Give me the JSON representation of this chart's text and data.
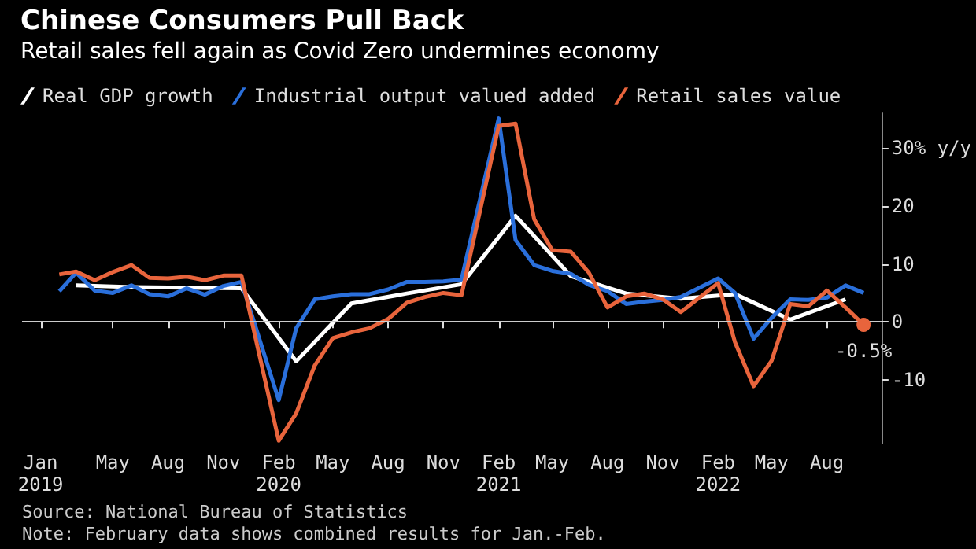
{
  "chart_data": {
    "type": "line",
    "title": "Chinese Consumers Pull Back",
    "subtitle": "Retail sales fell again as Covid Zero undermines economy",
    "series": [
      {
        "name": "Real GDP growth",
        "color": "#ffffff",
        "x": [
          "2019-03",
          "2019-06",
          "2019-09",
          "2019-12",
          "2020-03",
          "2020-06",
          "2020-09",
          "2020-12",
          "2021-03",
          "2021-06",
          "2021-09",
          "2021-12",
          "2022-03",
          "2022-06",
          "2022-09"
        ],
        "values": [
          6.3,
          6.0,
          5.9,
          5.8,
          -6.8,
          3.2,
          4.9,
          6.5,
          18.3,
          7.9,
          4.9,
          4.0,
          4.8,
          0.4,
          3.9
        ]
      },
      {
        "name": "Industrial output valued added",
        "color": "#2a6fdb",
        "x": [
          "2019-02",
          "2019-03",
          "2019-04",
          "2019-05",
          "2019-06",
          "2019-07",
          "2019-08",
          "2019-09",
          "2019-10",
          "2019-11",
          "2019-12",
          "2020-02",
          "2020-03",
          "2020-04",
          "2020-05",
          "2020-06",
          "2020-07",
          "2020-08",
          "2020-09",
          "2020-10",
          "2020-11",
          "2020-12",
          "2021-02",
          "2021-03",
          "2021-04",
          "2021-05",
          "2021-06",
          "2021-07",
          "2021-08",
          "2021-09",
          "2021-10",
          "2021-11",
          "2021-12",
          "2022-02",
          "2022-03",
          "2022-04",
          "2022-05",
          "2022-06",
          "2022-07",
          "2022-08",
          "2022-09",
          "2022-10"
        ],
        "values": [
          5.3,
          8.5,
          5.4,
          5.0,
          6.3,
          4.8,
          4.4,
          5.8,
          4.7,
          6.2,
          6.9,
          -13.5,
          -1.1,
          3.9,
          4.4,
          4.8,
          4.8,
          5.6,
          6.9,
          6.9,
          7.0,
          7.3,
          35.1,
          14.1,
          9.8,
          8.8,
          8.3,
          6.4,
          5.3,
          3.1,
          3.5,
          3.8,
          4.3,
          7.5,
          5.0,
          -2.9,
          0.7,
          3.9,
          3.8,
          4.2,
          6.3,
          5.0
        ]
      },
      {
        "name": "Retail sales value",
        "color": "#e8643c",
        "x": [
          "2019-02",
          "2019-03",
          "2019-04",
          "2019-05",
          "2019-06",
          "2019-07",
          "2019-08",
          "2019-09",
          "2019-10",
          "2019-11",
          "2019-12",
          "2020-02",
          "2020-03",
          "2020-04",
          "2020-05",
          "2020-06",
          "2020-07",
          "2020-08",
          "2020-09",
          "2020-10",
          "2020-11",
          "2020-12",
          "2021-02",
          "2021-03",
          "2021-04",
          "2021-05",
          "2021-06",
          "2021-07",
          "2021-08",
          "2021-09",
          "2021-10",
          "2021-11",
          "2021-12",
          "2022-02",
          "2022-03",
          "2022-04",
          "2022-05",
          "2022-06",
          "2022-07",
          "2022-08",
          "2022-09",
          "2022-10"
        ],
        "values": [
          8.2,
          8.7,
          7.2,
          8.6,
          9.8,
          7.6,
          7.5,
          7.8,
          7.2,
          8.0,
          8.0,
          -20.5,
          -15.8,
          -7.5,
          -2.8,
          -1.8,
          -1.1,
          0.5,
          3.3,
          4.3,
          5.0,
          4.6,
          33.8,
          34.2,
          17.7,
          12.4,
          12.1,
          8.5,
          2.5,
          4.4,
          4.9,
          3.9,
          1.7,
          6.7,
          -3.5,
          -11.1,
          -6.7,
          3.1,
          2.7,
          5.4,
          2.5,
          -0.5
        ]
      }
    ],
    "xlim": [
      "2018-12",
      "2022-11"
    ],
    "xticks": [
      {
        "value": "2019-01",
        "label": "Jan\n2019"
      },
      {
        "value": "2019-05",
        "label": "May"
      },
      {
        "value": "2019-08",
        "label": "Aug"
      },
      {
        "value": "2019-11",
        "label": "Nov"
      },
      {
        "value": "2020-02",
        "label": "Feb\n2020"
      },
      {
        "value": "2020-05",
        "label": "May"
      },
      {
        "value": "2020-08",
        "label": "Aug"
      },
      {
        "value": "2020-11",
        "label": "Nov"
      },
      {
        "value": "2021-02",
        "label": "Feb\n2021"
      },
      {
        "value": "2021-05",
        "label": "May"
      },
      {
        "value": "2021-08",
        "label": "Aug"
      },
      {
        "value": "2021-11",
        "label": "Nov"
      },
      {
        "value": "2022-02",
        "label": "Feb\n2022"
      },
      {
        "value": "2022-05",
        "label": "May"
      },
      {
        "value": "2022-08",
        "label": "Aug"
      }
    ],
    "ylim": [
      -21,
      36
    ],
    "yticks": [
      -10,
      0,
      10,
      20,
      {
        "value": 30,
        "label": "30% y/y"
      }
    ],
    "ref_lines": [
      {
        "axis": "y",
        "value": 0,
        "color": "#cccccc"
      }
    ],
    "annotations": [
      {
        "text": "-0.5%",
        "x": "2022-10",
        "y": -0.5
      },
      "Source: National Bureau of Statistics",
      "Note: February data shows combined results for Jan.-Feb."
    ],
    "legend": "top left",
    "grid": false,
    "marker": "none",
    "line_style": "solid"
  }
}
